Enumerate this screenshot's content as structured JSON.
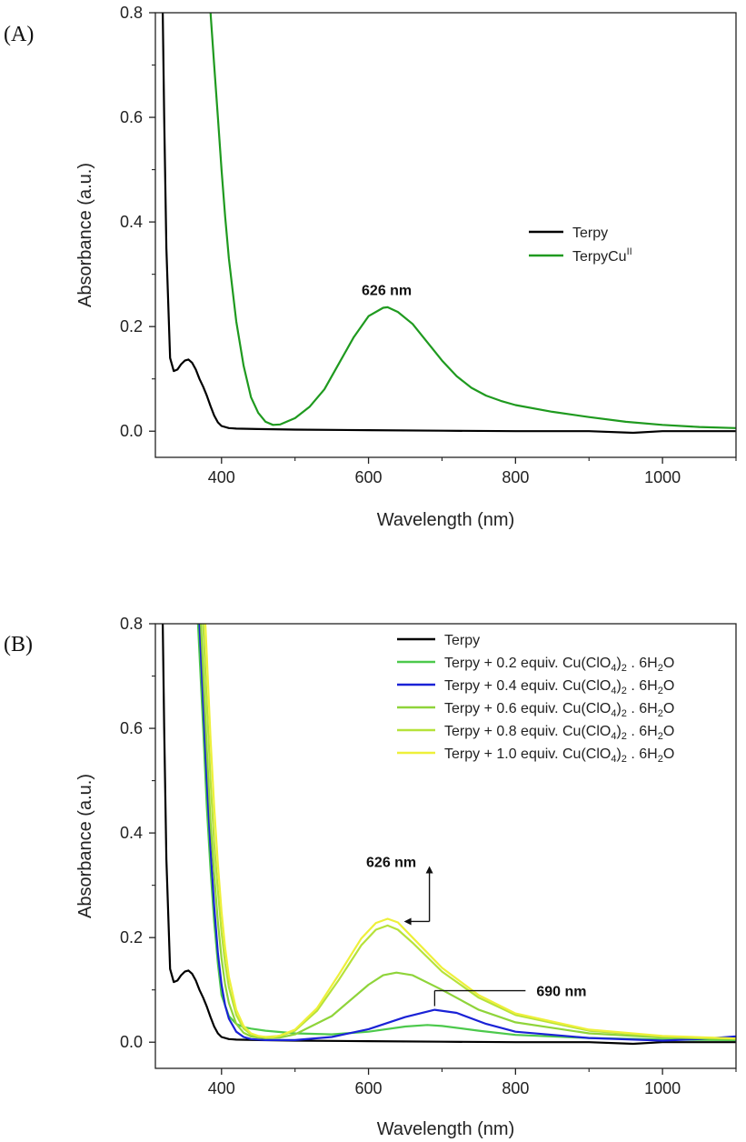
{
  "chart_data": [
    {
      "type": "line",
      "panel_label": "(A)",
      "xlabel": "Wavelength (nm)",
      "ylabel": "Absorbance (a.u.)",
      "xlim": [
        310,
        1100
      ],
      "ylim": [
        -0.05,
        0.8
      ],
      "xticks": [
        400,
        600,
        800,
        1000
      ],
      "yticks": [
        0.0,
        0.2,
        0.4,
        0.6,
        0.8
      ],
      "xtick_labels": [
        "400",
        "600",
        "800",
        "1000"
      ],
      "ytick_labels": [
        "0.0",
        "0.2",
        "0.4",
        "0.6",
        "0.8"
      ],
      "grid": false,
      "legend_position": "center-right",
      "annotations": [
        {
          "text": "626 nm",
          "x": 626,
          "y": 0.236
        }
      ],
      "series": [
        {
          "name": "Terpy",
          "color": "#000000",
          "x": [
            320,
            322,
            325,
            330,
            335,
            340,
            345,
            350,
            355,
            360,
            365,
            370,
            375,
            380,
            385,
            390,
            395,
            400,
            410,
            420,
            450,
            500,
            600,
            700,
            800,
            900,
            960,
            1000,
            1100
          ],
          "y": [
            0.8,
            0.6,
            0.35,
            0.14,
            0.115,
            0.118,
            0.128,
            0.135,
            0.137,
            0.131,
            0.118,
            0.1,
            0.085,
            0.068,
            0.048,
            0.03,
            0.017,
            0.01,
            0.006,
            0.005,
            0.004,
            0.003,
            0.002,
            0.001,
            0.0,
            0.0,
            -0.003,
            0.0,
            0.0
          ]
        },
        {
          "name": "TerpyCu",
          "name_sup": "II",
          "color": "#1f9a1f",
          "x": [
            385,
            390,
            395,
            400,
            405,
            410,
            420,
            430,
            440,
            450,
            460,
            470,
            480,
            500,
            520,
            540,
            560,
            580,
            600,
            620,
            626,
            640,
            660,
            680,
            700,
            720,
            740,
            760,
            780,
            800,
            850,
            900,
            950,
            1000,
            1050,
            1100
          ],
          "y": [
            0.8,
            0.7,
            0.6,
            0.5,
            0.41,
            0.33,
            0.21,
            0.125,
            0.065,
            0.035,
            0.018,
            0.012,
            0.013,
            0.025,
            0.047,
            0.08,
            0.13,
            0.18,
            0.22,
            0.236,
            0.237,
            0.228,
            0.205,
            0.17,
            0.135,
            0.105,
            0.083,
            0.068,
            0.058,
            0.05,
            0.037,
            0.027,
            0.018,
            0.012,
            0.008,
            0.006
          ]
        }
      ]
    },
    {
      "type": "line",
      "panel_label": "(B)",
      "xlabel": "Wavelength (nm)",
      "ylabel": "Absorbance (a.u.)",
      "xlim": [
        310,
        1100
      ],
      "ylim": [
        -0.05,
        0.8
      ],
      "xticks": [
        400,
        600,
        800,
        1000
      ],
      "yticks": [
        0.0,
        0.2,
        0.4,
        0.6,
        0.8
      ],
      "xtick_labels": [
        "400",
        "600",
        "800",
        "1000"
      ],
      "ytick_labels": [
        "0.0",
        "0.2",
        "0.4",
        "0.6",
        "0.8"
      ],
      "grid": false,
      "legend_position": "top-right",
      "annotations": [
        {
          "text": "626 nm",
          "x": 626,
          "y": 0.236
        },
        {
          "text": "690 nm",
          "x": 690,
          "y": 0.062
        }
      ],
      "series": [
        {
          "name": "Terpy",
          "color": "#000000",
          "x": [
            320,
            322,
            325,
            330,
            335,
            340,
            345,
            350,
            355,
            360,
            365,
            370,
            375,
            380,
            385,
            390,
            395,
            400,
            410,
            420,
            450,
            500,
            600,
            700,
            800,
            900,
            960,
            1000,
            1100
          ],
          "y": [
            0.8,
            0.6,
            0.35,
            0.14,
            0.115,
            0.118,
            0.128,
            0.135,
            0.137,
            0.131,
            0.118,
            0.1,
            0.085,
            0.068,
            0.048,
            0.03,
            0.017,
            0.01,
            0.006,
            0.005,
            0.004,
            0.003,
            0.002,
            0.001,
            0.0,
            0.0,
            -0.003,
            0.0,
            0.0
          ]
        },
        {
          "name": "Terpy + 0.2 equiv. Cu(ClO",
          "name_sub1": "4",
          "name_mid": ")",
          "name_sub2": "2",
          "name_tail": " . 6H",
          "name_sub3": "2",
          "name_end": "O",
          "color": "#4cc94c",
          "x": [
            368,
            375,
            380,
            385,
            390,
            395,
            400,
            410,
            420,
            430,
            440,
            460,
            500,
            550,
            600,
            650,
            680,
            700,
            750,
            800,
            900,
            1000,
            1100
          ],
          "y": [
            0.8,
            0.6,
            0.45,
            0.33,
            0.23,
            0.15,
            0.09,
            0.05,
            0.035,
            0.029,
            0.026,
            0.022,
            0.017,
            0.015,
            0.02,
            0.03,
            0.033,
            0.031,
            0.022,
            0.014,
            0.008,
            0.005,
            0.004
          ]
        },
        {
          "name": "Terpy + 0.4 equiv. Cu(ClO",
          "name_sub1": "4",
          "name_mid": ")",
          "name_sub2": "2",
          "name_tail": " . 6H",
          "name_sub3": "2",
          "name_end": "O",
          "color": "#1a22d6",
          "x": [
            370,
            375,
            380,
            385,
            390,
            395,
            400,
            405,
            410,
            420,
            430,
            440,
            460,
            480,
            500,
            550,
            600,
            650,
            690,
            720,
            760,
            800,
            900,
            1000,
            1050,
            1100
          ],
          "y": [
            0.8,
            0.65,
            0.5,
            0.37,
            0.26,
            0.17,
            0.11,
            0.07,
            0.045,
            0.02,
            0.01,
            0.006,
            0.004,
            0.004,
            0.004,
            0.01,
            0.025,
            0.048,
            0.062,
            0.056,
            0.035,
            0.02,
            0.008,
            0.003,
            0.006,
            0.011
          ]
        },
        {
          "name": "Terpy + 0.6 equiv. Cu(ClO",
          "name_sub1": "4",
          "name_mid": ")",
          "name_sub2": "2",
          "name_tail": " . 6H",
          "name_sub3": "2",
          "name_end": "O",
          "color": "#8fd43a",
          "x": [
            372,
            380,
            385,
            390,
            395,
            400,
            405,
            410,
            420,
            430,
            440,
            450,
            460,
            480,
            500,
            550,
            600,
            620,
            638,
            660,
            700,
            750,
            800,
            900,
            1000,
            1100
          ],
          "y": [
            0.8,
            0.56,
            0.42,
            0.32,
            0.23,
            0.16,
            0.11,
            0.075,
            0.035,
            0.018,
            0.011,
            0.009,
            0.008,
            0.009,
            0.015,
            0.05,
            0.11,
            0.128,
            0.133,
            0.128,
            0.1,
            0.062,
            0.038,
            0.017,
            0.009,
            0.006
          ]
        },
        {
          "name": "Terpy + 0.8 equiv. Cu(ClO",
          "name_sub1": "4",
          "name_mid": ")",
          "name_sub2": "2",
          "name_tail": " . 6H",
          "name_sub3": "2",
          "name_end": "O",
          "color": "#b6e23a",
          "x": [
            375,
            380,
            385,
            390,
            395,
            400,
            405,
            410,
            420,
            430,
            440,
            450,
            460,
            480,
            500,
            530,
            560,
            590,
            610,
            626,
            640,
            660,
            700,
            750,
            800,
            900,
            1000,
            1100
          ],
          "y": [
            0.8,
            0.65,
            0.5,
            0.38,
            0.29,
            0.21,
            0.15,
            0.105,
            0.052,
            0.026,
            0.015,
            0.011,
            0.01,
            0.012,
            0.022,
            0.06,
            0.12,
            0.185,
            0.215,
            0.223,
            0.215,
            0.19,
            0.135,
            0.085,
            0.052,
            0.022,
            0.011,
            0.007
          ]
        },
        {
          "name": "Terpy + 1.0 equiv. Cu(ClO",
          "name_sub1": "4",
          "name_mid": ")",
          "name_sub2": "2",
          "name_tail": " . 6H",
          "name_sub3": "2",
          "name_end": "O",
          "color": "#eef03a",
          "x": [
            378,
            385,
            390,
            395,
            400,
            405,
            410,
            420,
            430,
            440,
            450,
            460,
            470,
            480,
            500,
            530,
            560,
            590,
            610,
            626,
            640,
            660,
            700,
            750,
            800,
            900,
            1000,
            1100
          ],
          "y": [
            0.8,
            0.58,
            0.45,
            0.34,
            0.25,
            0.18,
            0.125,
            0.062,
            0.031,
            0.017,
            0.012,
            0.01,
            0.01,
            0.013,
            0.024,
            0.065,
            0.13,
            0.198,
            0.228,
            0.236,
            0.229,
            0.2,
            0.142,
            0.09,
            0.055,
            0.024,
            0.012,
            0.007
          ]
        }
      ]
    }
  ]
}
